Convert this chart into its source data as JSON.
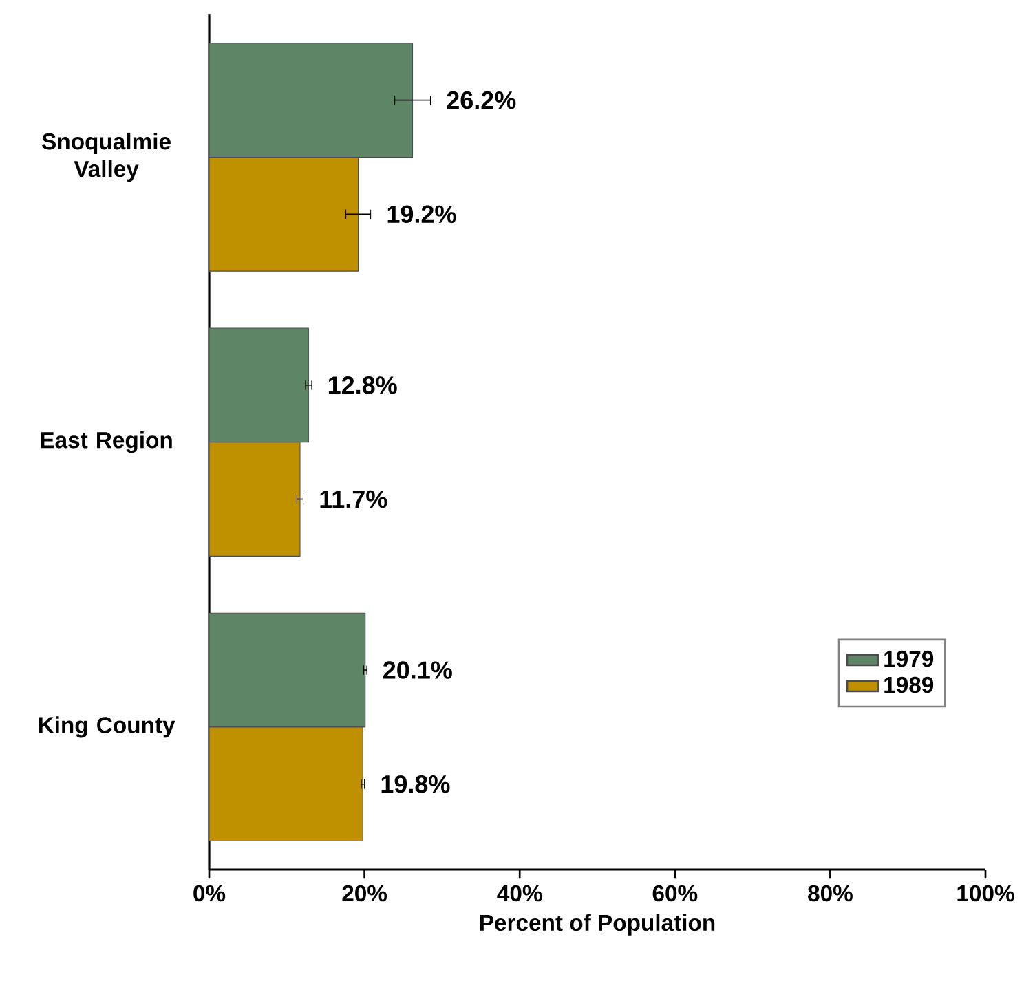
{
  "chart_data": {
    "type": "bar",
    "orientation": "horizontal",
    "xlabel": "Percent of Population",
    "categories": [
      "Snoqualmie Valley",
      "East Region",
      "King County"
    ],
    "series": [
      {
        "name": "1979",
        "color": "#5e8566",
        "values": [
          26.2,
          12.8,
          20.1
        ],
        "errors": [
          2.3,
          0.4,
          0.2
        ],
        "value_labels": [
          "26.2%",
          "12.8%",
          "20.1%"
        ]
      },
      {
        "name": "1989",
        "color": "#bf9000",
        "values": [
          19.2,
          11.7,
          19.8
        ],
        "errors": [
          1.6,
          0.4,
          0.2
        ],
        "value_labels": [
          "19.2%",
          "11.7%",
          "19.8%"
        ]
      }
    ],
    "xlim": [
      0,
      100
    ],
    "xticks": [
      {
        "value": 0,
        "label": "0%"
      },
      {
        "value": 20,
        "label": "20%"
      },
      {
        "value": 40,
        "label": "40%"
      },
      {
        "value": 60,
        "label": "60%"
      },
      {
        "value": 80,
        "label": "80%"
      },
      {
        "value": 100,
        "label": "100%"
      }
    ],
    "grid": false,
    "legend": "right"
  }
}
